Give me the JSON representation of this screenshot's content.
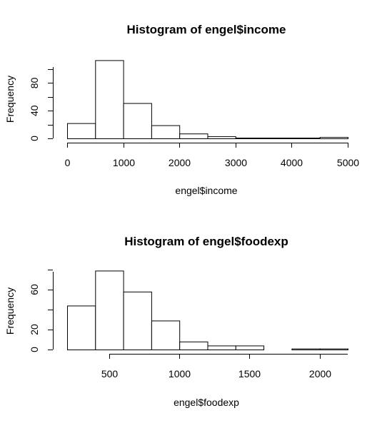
{
  "chart_data": [
    {
      "type": "bar",
      "title": "Histogram of engel$income",
      "xlabel": "engel$income",
      "ylabel": "Frequency",
      "x_ticks": [
        "0",
        "1000",
        "2000",
        "3000",
        "4000",
        "5000"
      ],
      "y_ticks": [
        "0",
        "40",
        "80"
      ],
      "xlim": [
        0,
        5000
      ],
      "ylim": [
        0,
        115
      ],
      "bins": [
        {
          "x0": 0,
          "x1": 500,
          "value": 22
        },
        {
          "x0": 500,
          "x1": 1000,
          "value": 113
        },
        {
          "x0": 1000,
          "x1": 1500,
          "value": 51
        },
        {
          "x0": 1500,
          "x1": 2000,
          "value": 19
        },
        {
          "x0": 2000,
          "x1": 2500,
          "value": 7
        },
        {
          "x0": 2500,
          "x1": 3000,
          "value": 3
        },
        {
          "x0": 3000,
          "x1": 3500,
          "value": 1
        },
        {
          "x0": 3500,
          "x1": 4000,
          "value": 1
        },
        {
          "x0": 4000,
          "x1": 4500,
          "value": 1
        },
        {
          "x0": 4500,
          "x1": 5000,
          "value": 2
        }
      ]
    },
    {
      "type": "bar",
      "title": "Histogram of engel$foodexp",
      "xlabel": "engel$foodexp",
      "ylabel": "Frequency",
      "x_ticks": [
        "500",
        "1000",
        "1500",
        "2000"
      ],
      "y_ticks": [
        "0",
        "20",
        "60"
      ],
      "xlim": [
        200,
        2200
      ],
      "ylim": [
        0,
        80
      ],
      "bins": [
        {
          "x0": 200,
          "x1": 400,
          "value": 44
        },
        {
          "x0": 400,
          "x1": 600,
          "value": 79
        },
        {
          "x0": 600,
          "x1": 800,
          "value": 58
        },
        {
          "x0": 800,
          "x1": 1000,
          "value": 29
        },
        {
          "x0": 1000,
          "x1": 1200,
          "value": 8
        },
        {
          "x0": 1200,
          "x1": 1400,
          "value": 4
        },
        {
          "x0": 1400,
          "x1": 1600,
          "value": 4
        },
        {
          "x0": 1600,
          "x1": 1800,
          "value": 0
        },
        {
          "x0": 1800,
          "x1": 2000,
          "value": 1
        },
        {
          "x0": 2000,
          "x1": 2200,
          "value": 1
        }
      ]
    }
  ]
}
